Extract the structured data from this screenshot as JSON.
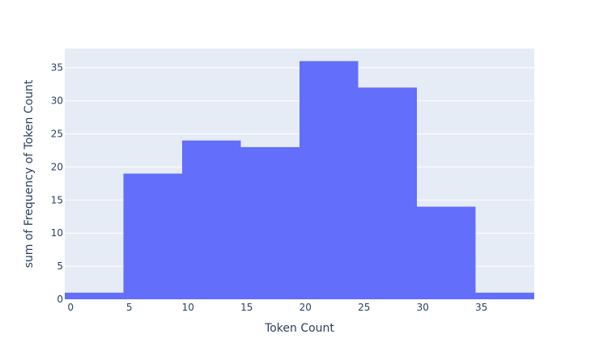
{
  "chart_data": {
    "type": "bar",
    "subtype": "histogram",
    "title": "",
    "xlabel": "Token Count",
    "ylabel": "sum of Frequency of Token Count",
    "bins": [
      {
        "start": -0.5,
        "end": 4.5,
        "value": 1
      },
      {
        "start": 4.5,
        "end": 9.5,
        "value": 19
      },
      {
        "start": 9.5,
        "end": 14.5,
        "value": 24
      },
      {
        "start": 14.5,
        "end": 19.5,
        "value": 23
      },
      {
        "start": 19.5,
        "end": 24.5,
        "value": 36
      },
      {
        "start": 24.5,
        "end": 29.5,
        "value": 32
      },
      {
        "start": 29.5,
        "end": 34.5,
        "value": 14
      },
      {
        "start": 34.5,
        "end": 39.5,
        "value": 1
      }
    ],
    "xlim": [
      -0.5,
      39.5
    ],
    "ylim": [
      0,
      37.9
    ],
    "x_ticks": [
      0,
      5,
      10,
      15,
      20,
      25,
      30,
      35
    ],
    "y_ticks": [
      0,
      5,
      10,
      15,
      20,
      25,
      30,
      35
    ],
    "grid": true,
    "legend": false,
    "colors": {
      "bar": "#636efa",
      "plot_background": "#e5ecf6",
      "grid": "#ffffff",
      "text": "#2a3f5f"
    }
  }
}
